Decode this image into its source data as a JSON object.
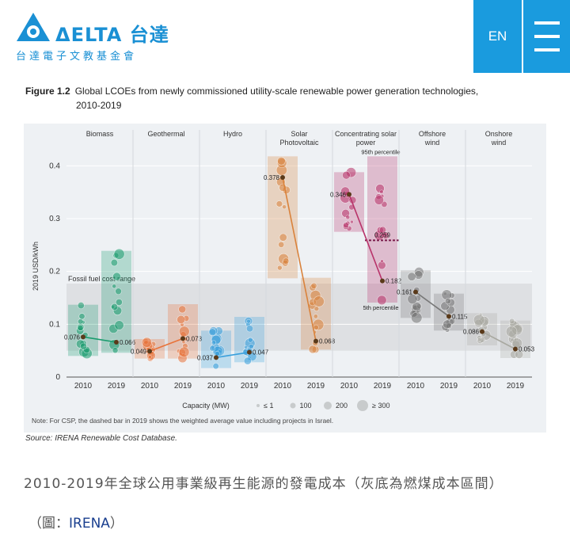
{
  "header": {
    "logo_word": "ΔELTA 台達",
    "logo_sub": "台達電子文教基金會",
    "lang_label": "EN"
  },
  "figure": {
    "label": "Figure 1.2",
    "title": "Global LCOEs from newly commissioned utility-scale renewable power generation technologies,",
    "title_line2": "2010-2019",
    "source": "Source: IRENA Renewable Cost Database."
  },
  "caption": "2010-2019年全球公用事業級再生能源的發電成本（灰底為燃煤成本區間）",
  "credit": {
    "prefix": "（圖：",
    "link": "IRENA",
    "suffix": "）"
  },
  "chart_data": {
    "type": "scatter",
    "ylabel": "2019 USD/kWh",
    "ylim": [
      0,
      0.42
    ],
    "yticks": [
      0,
      0.1,
      0.2,
      0.3,
      0.4
    ],
    "ytick_labels": [
      "0",
      "0.1",
      "0.2",
      "0.3",
      "0.4"
    ],
    "fossil_band": {
      "label": "Fossil fuel cost range",
      "range": [
        0.05,
        0.177
      ]
    },
    "note": "Note: For CSP, the dashed bar in 2019 shows the weighted average value including projects in Israel.",
    "legend": {
      "title": "Capacity (MW)",
      "items": [
        "≤ 1",
        "100",
        "200",
        "≥ 300"
      ]
    },
    "technologies": [
      {
        "name": "Biomass",
        "color": "#1a9c6e",
        "years": [
          "2010",
          "2019"
        ],
        "values": [
          0.076,
          0.066
        ],
        "labels": [
          "0.076",
          "0.066"
        ],
        "p5": [
          0.04,
          0.046
        ],
        "p95": [
          0.137,
          0.239
        ]
      },
      {
        "name": "Geothermal",
        "color": "#e8733a",
        "years": [
          "2010",
          "2019"
        ],
        "values": [
          0.049,
          0.073
        ],
        "labels": [
          "0.049",
          "0.073"
        ],
        "p5": [
          0.035,
          0.035
        ],
        "p95": [
          0.072,
          0.138
        ]
      },
      {
        "name": "Hydro",
        "color": "#3aa0dc",
        "years": [
          "2010",
          "2019"
        ],
        "values": [
          0.037,
          0.047
        ],
        "labels": [
          "0.037",
          "0.047"
        ],
        "p5": [
          0.017,
          0.028
        ],
        "p95": [
          0.088,
          0.114
        ]
      },
      {
        "name": "Solar Photovoltaic",
        "color": "#d9823b",
        "years": [
          "2010",
          "2019"
        ],
        "values": [
          0.378,
          0.068
        ],
        "labels": [
          "0.378",
          "0.068"
        ],
        "p5": [
          0.187,
          0.052
        ],
        "p95": [
          0.418,
          0.188
        ]
      },
      {
        "name": "Concentrating solar power",
        "color": "#b8336a",
        "years": [
          "2010",
          "2019"
        ],
        "values": [
          0.346,
          0.182
        ],
        "labels": [
          "0.346",
          "0.182"
        ],
        "p5": [
          0.275,
          0.141
        ],
        "p95": [
          0.388,
          0.418
        ],
        "dashed_value": 0.259,
        "dashed_label": "0.259",
        "p95_label": "95th percentile",
        "p5_label": "5th percentile"
      },
      {
        "name": "Offshore wind",
        "color": "#777777",
        "years": [
          "2010",
          "2019"
        ],
        "values": [
          0.161,
          0.115
        ],
        "labels": [
          "0.161",
          "0.115"
        ],
        "p5": [
          0.112,
          0.088
        ],
        "p95": [
          0.202,
          0.158
        ]
      },
      {
        "name": "Onshore wind",
        "color": "#a8a8a0",
        "years": [
          "2010",
          "2019"
        ],
        "values": [
          0.086,
          0.053
        ],
        "labels": [
          "0.086",
          "0.053"
        ],
        "p5": [
          0.06,
          0.036
        ],
        "p95": [
          0.121,
          0.107
        ]
      }
    ]
  }
}
